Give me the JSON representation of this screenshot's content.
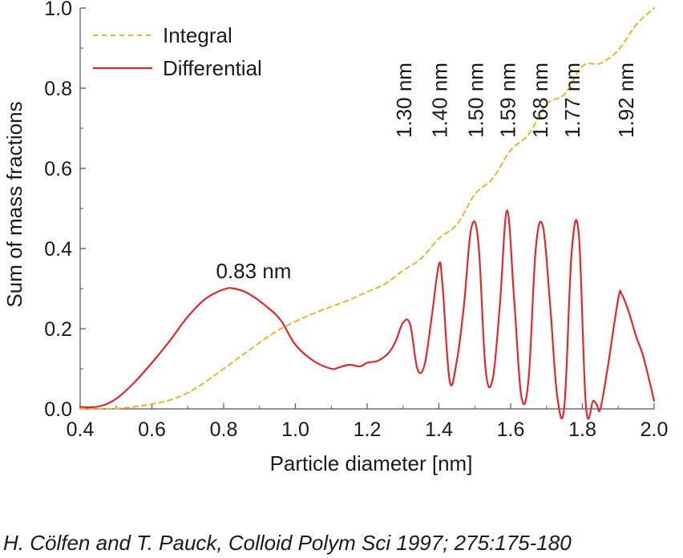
{
  "chart_data": {
    "type": "line",
    "xlabel": "Particle diameter [nm]",
    "ylabel": "Sum of mass fractions",
    "xlim": [
      0.4,
      2.0
    ],
    "ylim": [
      0.0,
      1.0
    ],
    "x_ticks": [
      0.4,
      0.6,
      0.8,
      1.0,
      1.2,
      1.4,
      1.6,
      1.8,
      2.0
    ],
    "x_tick_labels": [
      "0.4",
      "0.6",
      "0.8",
      "1.0",
      "1.2",
      "1.4",
      "1.6",
      "1.8",
      "2.0"
    ],
    "y_ticks": [
      0.0,
      0.2,
      0.4,
      0.6,
      0.8,
      1.0
    ],
    "y_tick_labels": [
      "0.0",
      "0.2",
      "0.4",
      "0.6",
      "0.8",
      "1.0"
    ],
    "legend_position": "top-left",
    "series": [
      {
        "name": "Integral",
        "color": "#f0b429",
        "style": "dashed",
        "x": [
          0.4,
          0.45,
          0.5,
          0.55,
          0.6,
          0.65,
          0.7,
          0.75,
          0.8,
          0.85,
          0.9,
          0.95,
          1.0,
          1.05,
          1.1,
          1.15,
          1.2,
          1.25,
          1.3,
          1.35,
          1.4,
          1.45,
          1.5,
          1.55,
          1.6,
          1.65,
          1.7,
          1.75,
          1.8,
          1.85,
          1.9,
          1.95,
          2.0
        ],
        "y": [
          0.0,
          0.0,
          0.001,
          0.005,
          0.012,
          0.022,
          0.04,
          0.068,
          0.1,
          0.133,
          0.165,
          0.195,
          0.218,
          0.238,
          0.255,
          0.272,
          0.292,
          0.312,
          0.345,
          0.375,
          0.425,
          0.46,
          0.535,
          0.575,
          0.645,
          0.685,
          0.76,
          0.785,
          0.855,
          0.862,
          0.895,
          0.958,
          1.0
        ]
      },
      {
        "name": "Differential",
        "color": "#e0282e",
        "style": "solid",
        "x": [
          0.4,
          0.43,
          0.46,
          0.5,
          0.55,
          0.6,
          0.65,
          0.7,
          0.75,
          0.8,
          0.83,
          0.87,
          0.92,
          0.96,
          1.0,
          1.05,
          1.1,
          1.12,
          1.15,
          1.18,
          1.2,
          1.23,
          1.26,
          1.28,
          1.3,
          1.32,
          1.34,
          1.36,
          1.38,
          1.4,
          1.41,
          1.43,
          1.45,
          1.47,
          1.49,
          1.51,
          1.53,
          1.55,
          1.57,
          1.59,
          1.61,
          1.63,
          1.65,
          1.67,
          1.69,
          1.71,
          1.73,
          1.75,
          1.77,
          1.79,
          1.81,
          1.83,
          1.84,
          1.85,
          1.87,
          1.9,
          1.91,
          1.93,
          1.95,
          1.97,
          2.0
        ],
        "y": [
          0.005,
          0.004,
          0.008,
          0.025,
          0.065,
          0.115,
          0.17,
          0.23,
          0.275,
          0.298,
          0.3,
          0.287,
          0.255,
          0.22,
          0.16,
          0.12,
          0.1,
          0.103,
          0.11,
          0.106,
          0.115,
          0.12,
          0.14,
          0.17,
          0.215,
          0.21,
          0.1,
          0.11,
          0.23,
          0.36,
          0.31,
          0.07,
          0.12,
          0.26,
          0.45,
          0.415,
          0.1,
          0.075,
          0.26,
          0.495,
          0.27,
          0.03,
          0.075,
          0.4,
          0.455,
          0.26,
          0.03,
          0.01,
          0.39,
          0.435,
          0.005,
          0.02,
          0.01,
          0.0,
          0.1,
          0.275,
          0.285,
          0.24,
          0.18,
          0.13,
          0.02
        ]
      }
    ],
    "annotations": [
      {
        "text": "0.83 nm",
        "x": 0.83,
        "y": 0.3,
        "orientation": "horizontal"
      },
      {
        "text": "1.30 nm",
        "x": 1.3,
        "y": 0.215,
        "orientation": "vertical"
      },
      {
        "text": "1.40 nm",
        "x": 1.4,
        "y": 0.36,
        "orientation": "vertical"
      },
      {
        "text": "1.50 nm",
        "x": 1.5,
        "y": 0.45,
        "orientation": "vertical"
      },
      {
        "text": "1.59 nm",
        "x": 1.59,
        "y": 0.495,
        "orientation": "vertical"
      },
      {
        "text": "1.68 nm",
        "x": 1.68,
        "y": 0.455,
        "orientation": "vertical"
      },
      {
        "text": "1.77 nm",
        "x": 1.77,
        "y": 0.435,
        "orientation": "vertical"
      },
      {
        "text": "1.92 nm",
        "x": 1.92,
        "y": 0.285,
        "orientation": "vertical"
      }
    ]
  },
  "citation": "H. Cölfen and T. Pauck, Colloid Polym Sci 1997; 275:175-180"
}
